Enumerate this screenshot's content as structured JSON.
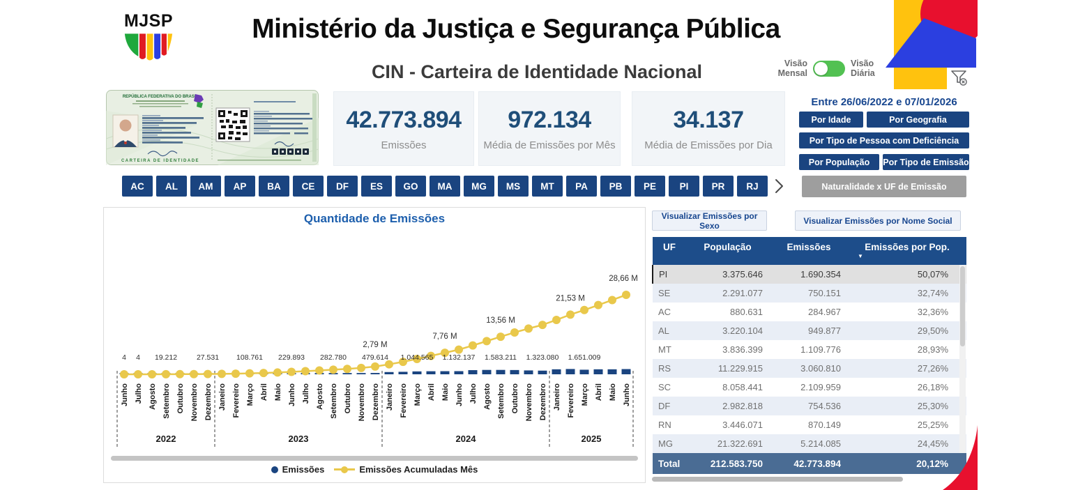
{
  "header": {
    "logo_text": "MJSP",
    "title": "Ministério da Justiça e Segurança Pública",
    "subtitle": "CIN - Carteira de Identidade Nacional",
    "toggle": {
      "left_label": "Visão Mensal",
      "right_label": "Visão Diária"
    }
  },
  "card": {
    "header_text": "REPÚBLICA FEDERATIVA DO BRASIL",
    "footer_text": "CARTEIRA DE IDENTIDADE"
  },
  "kpis": [
    {
      "value": "42.773.894",
      "label": "Emissões"
    },
    {
      "value": "972.134",
      "label": "Média de Emissões por Mês"
    },
    {
      "value": "34.137",
      "label": "Média de Emissões por Dia"
    }
  ],
  "filters": {
    "date_range": "Entre 26/06/2022 e 07/01/2026",
    "buttons": [
      "Por Idade",
      "Por Geografia",
      "Por Tipo de Pessoa com Deficiência",
      "Por População",
      "Por Tipo de Emissão"
    ],
    "naturalidade_button": "Naturalidade x UF de Emissão"
  },
  "uf_buttons": [
    "AC",
    "AL",
    "AM",
    "AP",
    "BA",
    "CE",
    "DF",
    "ES",
    "GO",
    "MA",
    "MG",
    "MS",
    "MT",
    "PA",
    "PB",
    "PE",
    "PI",
    "PR",
    "RJ"
  ],
  "chart_data": {
    "type": "line",
    "title": "Quantidade de Emissões",
    "x_months": [
      "Junho",
      "Julho",
      "Agosto",
      "Setembro",
      "Outubro",
      "Novembro",
      "Dezembro",
      "Janeiro",
      "Fevereiro",
      "Março",
      "Abril",
      "Maio",
      "Junho",
      "Julho",
      "Agosto",
      "Setembro",
      "Outubro",
      "Novembro",
      "Dezembro",
      "Janeiro",
      "Fevereiro",
      "Março",
      "Abril",
      "Maio",
      "Junho",
      "Julho",
      "Agosto",
      "Setembro",
      "Outubro",
      "Novembro",
      "Dezembro",
      "Janeiro",
      "Fevereiro",
      "Março",
      "Abril",
      "Maio",
      "Junho"
    ],
    "year_groups": [
      {
        "year": "2022",
        "months": 7
      },
      {
        "year": "2023",
        "months": 12
      },
      {
        "year": "2024",
        "months": 12
      },
      {
        "year": "2025",
        "months": 6
      }
    ],
    "y_range": [
      0,
      30000000
    ],
    "legend_position": "bottom",
    "series": [
      {
        "name": "Emissões",
        "type": "bar",
        "color": "#1A4480",
        "values": [
          4,
          4,
          8000,
          19212,
          21000,
          25000,
          27531,
          50000,
          75000,
          108761,
          135000,
          175000,
          229893,
          250000,
          270000,
          282780,
          280000,
          350000,
          479614,
          810000,
          900000,
          1044565,
          1100000,
          1120000,
          1132137,
          1500000,
          1580000,
          1583211,
          1540000,
          1400000,
          1323080,
          1800000,
          1910000,
          1651009,
          1800000,
          1800000,
          1880000
        ],
        "point_labels": {
          "0": "4",
          "1": "4",
          "3": "19.212",
          "6": "27.531",
          "9": "108.761",
          "12": "229.893",
          "15": "282.780",
          "18": "479.614",
          "21": "1.044.565",
          "24": "1.132.137",
          "27": "1.583.211",
          "30": "1.323.080",
          "33": "1.651.009"
        }
      },
      {
        "name": "Emissões Acumuladas Mês",
        "type": "line",
        "color": "#E9C84B",
        "values": [
          4,
          8,
          8008,
          27220,
          48220,
          73220,
          100751,
          150751,
          225751,
          334512,
          469512,
          644512,
          874405,
          1124405,
          1394405,
          1677185,
          1957185,
          2307185,
          2786799,
          3596799,
          4496799,
          5541364,
          6641364,
          7761364,
          8893501,
          10393501,
          11973501,
          13556712,
          15096712,
          16496712,
          17819792,
          19619792,
          21529792,
          23180801,
          24980801,
          26780801,
          28660801
        ],
        "point_labels": {
          "18": "2,79 M",
          "23": "7,76 M",
          "27": "13,56 M",
          "32": "21,53 M",
          "36": "28,66 M"
        }
      }
    ]
  },
  "right_panel": {
    "buttons": [
      "Visualizar Emissões por Sexo",
      "Visualizar Emissões por Nome Social"
    ],
    "table": {
      "columns": [
        "UF",
        "População",
        "Emissões",
        "Emissões por Pop."
      ],
      "sort_icon": "▼",
      "selected_uf": "PI",
      "rows": [
        {
          "uf": "PI",
          "populacao": "3.375.646",
          "emissoes": "1.690.354",
          "pct": "50,07%"
        },
        {
          "uf": "SE",
          "populacao": "2.291.077",
          "emissoes": "750.151",
          "pct": "32,74%"
        },
        {
          "uf": "AC",
          "populacao": "880.631",
          "emissoes": "284.967",
          "pct": "32,36%"
        },
        {
          "uf": "AL",
          "populacao": "3.220.104",
          "emissoes": "949.877",
          "pct": "29,50%"
        },
        {
          "uf": "MT",
          "populacao": "3.836.399",
          "emissoes": "1.109.776",
          "pct": "28,93%"
        },
        {
          "uf": "RS",
          "populacao": "11.229.915",
          "emissoes": "3.060.810",
          "pct": "27,26%"
        },
        {
          "uf": "SC",
          "populacao": "8.058.441",
          "emissoes": "2.109.959",
          "pct": "26,18%"
        },
        {
          "uf": "DF",
          "populacao": "2.982.818",
          "emissoes": "754.536",
          "pct": "25,30%"
        },
        {
          "uf": "RN",
          "populacao": "3.446.071",
          "emissoes": "870.149",
          "pct": "25,25%"
        },
        {
          "uf": "MG",
          "populacao": "21.322.691",
          "emissoes": "5.214.085",
          "pct": "24,45%"
        }
      ],
      "total": {
        "label": "Total",
        "populacao": "212.583.750",
        "emissoes": "42.773.894",
        "pct": "20,12%"
      }
    }
  },
  "colors": {
    "navy": "#1A4480",
    "table_header": "#1D4D8A",
    "total_row": "#4A6C94",
    "kpi_blue": "#1F4E79",
    "link_blue": "#17468F",
    "chart_title": "#1D5FAD",
    "yellow": "#E9C84B",
    "toggle_green": "#52C152",
    "brand_red": "#E8102E",
    "brand_yellow": "#FFC20E",
    "brand_blue": "#2B3FE0",
    "row_alt": "#E9EEF6",
    "gray_button": "#9E9E9E"
  }
}
